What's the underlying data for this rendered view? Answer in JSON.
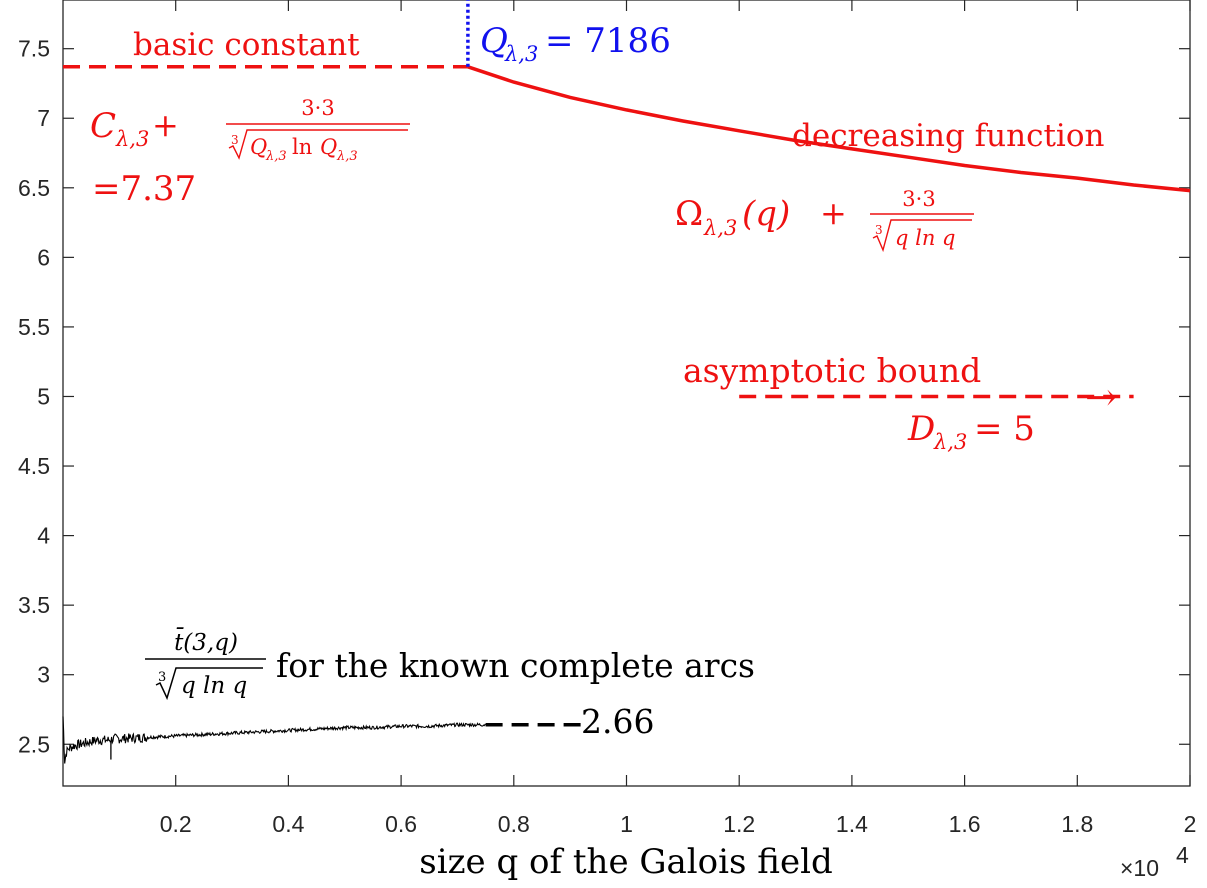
{
  "chart_data": {
    "type": "line",
    "title": "",
    "xlabel": "size q of the Galois field",
    "ylabel": "",
    "x_multiplier": "×10",
    "x_multiplier_exp": "4",
    "xlim": [
      0,
      20000
    ],
    "ylim": [
      2.2,
      7.85
    ],
    "x_tick_values": [
      2000,
      4000,
      6000,
      8000,
      10000,
      12000,
      14000,
      16000,
      18000,
      20000
    ],
    "x_tick_labels": [
      "0.2",
      "0.4",
      "0.6",
      "0.8",
      "1",
      "1.2",
      "1.4",
      "1.6",
      "1.8",
      "2"
    ],
    "y_tick_values": [
      2.5,
      3,
      3.5,
      4,
      4.5,
      5,
      5.5,
      6,
      6.5,
      7,
      7.5
    ],
    "y_tick_labels": [
      "2.5",
      "3",
      "3.5",
      "4",
      "4.5",
      "5",
      "5.5",
      "6",
      "6.5",
      "7",
      "7.5"
    ],
    "grid": false,
    "series": [
      {
        "style": "dashed",
        "color": "#ee1111",
        "x": [
          0,
          7186
        ],
        "y": [
          7.37,
          7.37
        ]
      },
      {
        "style": "solid",
        "color": "#ee1111",
        "x": [
          7186,
          8000,
          9000,
          10000,
          11000,
          12000,
          13000,
          14000,
          15000,
          16000,
          17000,
          18000,
          19000,
          20000
        ],
        "y": [
          7.37,
          7.26,
          7.15,
          7.06,
          6.98,
          6.91,
          6.84,
          6.78,
          6.72,
          6.66,
          6.61,
          6.57,
          6.52,
          6.48
        ]
      },
      {
        "style": "dotted",
        "color": "#1111ee",
        "x": [
          7186,
          7186
        ],
        "y": [
          7.37,
          7.85
        ]
      },
      {
        "style": "dashed",
        "color": "#ee1111",
        "x": [
          12000,
          19000
        ],
        "y": [
          5,
          5
        ]
      },
      {
        "style": "noisy",
        "color": "#000000",
        "x": [
          0,
          30,
          60,
          100,
          150,
          200,
          300,
          400,
          500,
          600,
          700,
          800,
          900,
          1000,
          1500,
          2000,
          2500,
          3000,
          3500,
          4000,
          4500,
          5000,
          5500,
          6000,
          6500,
          7000,
          7500
        ],
        "y": [
          2.7,
          2.38,
          2.44,
          2.47,
          2.48,
          2.49,
          2.5,
          2.51,
          2.52,
          2.53,
          2.53,
          2.53,
          2.54,
          2.54,
          2.55,
          2.56,
          2.57,
          2.58,
          2.59,
          2.6,
          2.61,
          2.62,
          2.62,
          2.63,
          2.63,
          2.64,
          2.64
        ]
      },
      {
        "style": "dashed",
        "color": "#000000",
        "x": [
          7500,
          9200
        ],
        "y": [
          2.64,
          2.64
        ]
      }
    ],
    "annotations": {
      "basic_constant": "basic constant",
      "c_formula_lhs": "C",
      "c_formula_sub": "λ,3",
      "c_formula_plus": "+",
      "c_frac_num": "3·3",
      "c_frac_den": "Q",
      "c_frac_den_sub": "λ,3",
      "c_frac_den_ln": "ln",
      "c_frac_den_q2": "Q",
      "c_frac_den_sub2": "λ,3",
      "c_value": "=7.37",
      "q_label": "Q",
      "q_sub": "λ,3",
      "q_value": "= 7186",
      "decreasing": "decreasing function",
      "omega_lhs": "Ω",
      "omega_sub": "λ,3",
      "omega_arg": "(q)",
      "omega_plus": "+",
      "omega_frac_num": "3·3",
      "omega_frac_den": "q ln q",
      "asymptotic": "asymptotic bound",
      "arrow": "→",
      "d_label": "D",
      "d_sub": "λ,3",
      "d_value": "= 5",
      "t_num": "t̄(3,q)",
      "t_den": "q ln q",
      "t_text": "for the known complete arcs",
      "t_value": "2.66",
      "cube_root_index": "3"
    }
  }
}
